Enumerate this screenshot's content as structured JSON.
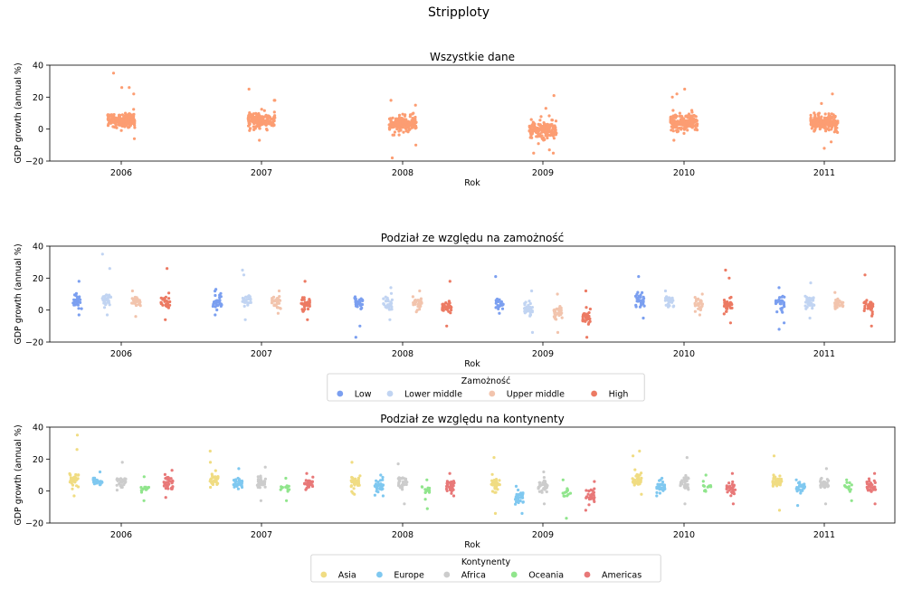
{
  "suptitle": "Stripploty",
  "years": [
    "2006",
    "2007",
    "2008",
    "2009",
    "2010",
    "2011"
  ],
  "chart_data": [
    {
      "type": "scatter",
      "title": "Wszystkie dane",
      "xlabel": "Rok",
      "ylabel": "GDP growth (annual %)",
      "ylim": [
        -20,
        40
      ],
      "yticks": [
        -20,
        0,
        20,
        40
      ],
      "categories": [
        "2006",
        "2007",
        "2008",
        "2009",
        "2010",
        "2011"
      ],
      "legend": null,
      "series": [
        {
          "color": "#fc9d72",
          "groups": {
            "2006": {
              "center": 5.5,
              "spread": 4.5,
              "n": 190,
              "extremes": [
                35,
                26,
                26,
                22,
                -6
              ]
            },
            "2007": {
              "center": 5.5,
              "spread": 4.5,
              "n": 190,
              "extremes": [
                25,
                18,
                18,
                -7
              ]
            },
            "2008": {
              "center": 3.5,
              "spread": 4.5,
              "n": 190,
              "extremes": [
                18,
                15,
                -10,
                -18
              ]
            },
            "2009": {
              "center": -0.5,
              "spread": 5.5,
              "n": 190,
              "extremes": [
                21,
                13,
                -13,
                -15,
                -15
              ]
            },
            "2010": {
              "center": 4.5,
              "spread": 4.5,
              "n": 190,
              "extremes": [
                25,
                22,
                20,
                -7
              ]
            },
            "2011": {
              "center": 4,
              "spread": 4.5,
              "n": 190,
              "extremes": [
                22,
                16,
                -8,
                -12
              ]
            }
          }
        }
      ]
    },
    {
      "type": "scatter",
      "title": "Podział ze względu na zamożność",
      "xlabel": "Rok",
      "ylabel": "GDP growth (annual %)",
      "ylim": [
        -20,
        40
      ],
      "yticks": [
        -20,
        0,
        20,
        40
      ],
      "categories": [
        "2006",
        "2007",
        "2008",
        "2009",
        "2010",
        "2011"
      ],
      "legend": {
        "title": "Zamożność",
        "placement": "below-center"
      },
      "series": [
        {
          "name": "Low",
          "color": "#7b9ff0",
          "groups": {
            "2006": {
              "center": 5.5,
              "spread": 4,
              "n": 30,
              "extremes": [
                18,
                -3
              ]
            },
            "2007": {
              "center": 5.5,
              "spread": 4,
              "n": 30,
              "extremes": [
                13,
                -3
              ]
            },
            "2008": {
              "center": 5,
              "spread": 3.5,
              "n": 30,
              "extremes": [
                -10,
                -17
              ]
            },
            "2009": {
              "center": 4,
              "spread": 3.5,
              "n": 30,
              "extremes": [
                21,
                -2
              ]
            },
            "2010": {
              "center": 6,
              "spread": 4,
              "n": 30,
              "extremes": [
                21,
                -5
              ]
            },
            "2011": {
              "center": 5,
              "spread": 4,
              "n": 30,
              "extremes": [
                14,
                -8,
                -12
              ]
            }
          }
        },
        {
          "name": "Lower middle",
          "color": "#c1d4f2",
          "groups": {
            "2006": {
              "center": 6.5,
              "spread": 4,
              "n": 30,
              "extremes": [
                35,
                26,
                -3
              ]
            },
            "2007": {
              "center": 6,
              "spread": 4,
              "n": 30,
              "extremes": [
                25,
                22,
                -6
              ]
            },
            "2008": {
              "center": 4,
              "spread": 4,
              "n": 30,
              "extremes": [
                14,
                -6
              ]
            },
            "2009": {
              "center": 1,
              "spread": 4.5,
              "n": 30,
              "extremes": [
                12,
                -14
              ]
            },
            "2010": {
              "center": 6,
              "spread": 3.5,
              "n": 30,
              "extremes": [
                12
              ]
            },
            "2011": {
              "center": 5,
              "spread": 4,
              "n": 30,
              "extremes": [
                17,
                -5
              ]
            }
          }
        },
        {
          "name": "Upper middle",
          "color": "#f2c4ad",
          "groups": {
            "2006": {
              "center": 6,
              "spread": 3.5,
              "n": 30,
              "extremes": [
                12,
                -4
              ]
            },
            "2007": {
              "center": 5.5,
              "spread": 3.5,
              "n": 30,
              "extremes": [
                12,
                -2
              ]
            },
            "2008": {
              "center": 4,
              "spread": 4,
              "n": 30,
              "extremes": [
                12
              ]
            },
            "2009": {
              "center": -2,
              "spread": 4,
              "n": 30,
              "extremes": [
                10,
                -14
              ]
            },
            "2010": {
              "center": 3.5,
              "spread": 3.5,
              "n": 30,
              "extremes": [
                10,
                -3
              ]
            },
            "2011": {
              "center": 4,
              "spread": 3,
              "n": 30,
              "extremes": [
                11
              ]
            }
          }
        },
        {
          "name": "High",
          "color": "#ec7a63",
          "groups": {
            "2006": {
              "center": 5,
              "spread": 4,
              "n": 30,
              "extremes": [
                26,
                -6
              ]
            },
            "2007": {
              "center": 4.5,
              "spread": 4,
              "n": 30,
              "extremes": [
                18,
                -6
              ]
            },
            "2008": {
              "center": 1.5,
              "spread": 4,
              "n": 30,
              "extremes": [
                18,
                -10
              ]
            },
            "2009": {
              "center": -4,
              "spread": 4.5,
              "n": 30,
              "extremes": [
                12,
                -17
              ]
            },
            "2010": {
              "center": 2.5,
              "spread": 4,
              "n": 30,
              "extremes": [
                25,
                20,
                -8
              ]
            },
            "2011": {
              "center": 2,
              "spread": 4,
              "n": 30,
              "extremes": [
                22,
                -10
              ]
            }
          }
        }
      ]
    },
    {
      "type": "scatter",
      "title": "Podział ze względu na kontynenty",
      "xlabel": "Rok",
      "ylabel": "GDP growth (annual %)",
      "ylim": [
        -20,
        40
      ],
      "yticks": [
        -20,
        0,
        20,
        40
      ],
      "categories": [
        "2006",
        "2007",
        "2008",
        "2009",
        "2010",
        "2011"
      ],
      "legend": {
        "title": "Kontynenty",
        "placement": "below-center"
      },
      "series": [
        {
          "name": "Asia",
          "color": "#f0dc82",
          "groups": {
            "2006": {
              "center": 7,
              "spread": 4,
              "n": 35,
              "extremes": [
                35,
                26,
                -3
              ]
            },
            "2007": {
              "center": 7,
              "spread": 4,
              "n": 35,
              "extremes": [
                25,
                18
              ]
            },
            "2008": {
              "center": 5,
              "spread": 4,
              "n": 35,
              "extremes": [
                18,
                -2
              ]
            },
            "2009": {
              "center": 3,
              "spread": 5,
              "n": 35,
              "extremes": [
                21,
                -14
              ]
            },
            "2010": {
              "center": 7,
              "spread": 4,
              "n": 35,
              "extremes": [
                25,
                22,
                -2
              ]
            },
            "2011": {
              "center": 6,
              "spread": 4,
              "n": 35,
              "extremes": [
                22,
                -12
              ]
            }
          }
        },
        {
          "name": "Europe",
          "color": "#7fc8f0",
          "groups": {
            "2006": {
              "center": 6,
              "spread": 2.5,
              "n": 30,
              "extremes": [
                12
              ]
            },
            "2007": {
              "center": 5,
              "spread": 3,
              "n": 30,
              "extremes": [
                14
              ]
            },
            "2008": {
              "center": 3,
              "spread": 3.5,
              "n": 30,
              "extremes": [
                10,
                -3
              ]
            },
            "2009": {
              "center": -4,
              "spread": 3.5,
              "n": 30,
              "extremes": [
                -14,
                3
              ]
            },
            "2010": {
              "center": 2.5,
              "spread": 3,
              "n": 30,
              "extremes": [
                8,
                -3
              ]
            },
            "2011": {
              "center": 2.5,
              "spread": 3,
              "n": 30,
              "extremes": [
                -9,
                7
              ]
            }
          }
        },
        {
          "name": "Africa",
          "color": "#cccccc",
          "groups": {
            "2006": {
              "center": 5,
              "spread": 3.5,
              "n": 30,
              "extremes": [
                18
              ]
            },
            "2007": {
              "center": 5.5,
              "spread": 4,
              "n": 30,
              "extremes": [
                15,
                -6
              ]
            },
            "2008": {
              "center": 5,
              "spread": 3.5,
              "n": 30,
              "extremes": [
                17,
                -8
              ]
            },
            "2009": {
              "center": 3,
              "spread": 3.5,
              "n": 30,
              "extremes": [
                12,
                -8
              ]
            },
            "2010": {
              "center": 5.5,
              "spread": 3.5,
              "n": 30,
              "extremes": [
                21,
                -8
              ]
            },
            "2011": {
              "center": 4.5,
              "spread": 4,
              "n": 30,
              "extremes": [
                14,
                -8
              ]
            }
          }
        },
        {
          "name": "Oceania",
          "color": "#90e58c",
          "groups": {
            "2006": {
              "center": 1.5,
              "spread": 3.5,
              "n": 12,
              "extremes": [
                9,
                -6
              ]
            },
            "2007": {
              "center": 1.5,
              "spread": 2.5,
              "n": 12,
              "extremes": [
                8,
                -6
              ]
            },
            "2008": {
              "center": 0,
              "spread": 3.5,
              "n": 12,
              "extremes": [
                7,
                -11
              ]
            },
            "2009": {
              "center": 0,
              "spread": 3.5,
              "n": 12,
              "extremes": [
                7,
                -17
              ]
            },
            "2010": {
              "center": 2,
              "spread": 3,
              "n": 12,
              "extremes": [
                10
              ]
            },
            "2011": {
              "center": 2,
              "spread": 3,
              "n": 12,
              "extremes": [
                7,
                -6
              ]
            }
          }
        },
        {
          "name": "Americas",
          "color": "#e87878",
          "groups": {
            "2006": {
              "center": 5,
              "spread": 3.5,
              "n": 30,
              "extremes": [
                13,
                -4
              ]
            },
            "2007": {
              "center": 4.5,
              "spread": 3.5,
              "n": 30,
              "extremes": [
                11
              ]
            },
            "2008": {
              "center": 3,
              "spread": 3.5,
              "n": 30,
              "extremes": [
                11,
                -3
              ]
            },
            "2009": {
              "center": -3,
              "spread": 3.5,
              "n": 30,
              "extremes": [
                6,
                -12
              ]
            },
            "2010": {
              "center": 2.5,
              "spread": 4,
              "n": 30,
              "extremes": [
                11,
                -8
              ]
            },
            "2011": {
              "center": 3,
              "spread": 3.5,
              "n": 30,
              "extremes": [
                11,
                -8
              ]
            }
          }
        }
      ]
    }
  ]
}
